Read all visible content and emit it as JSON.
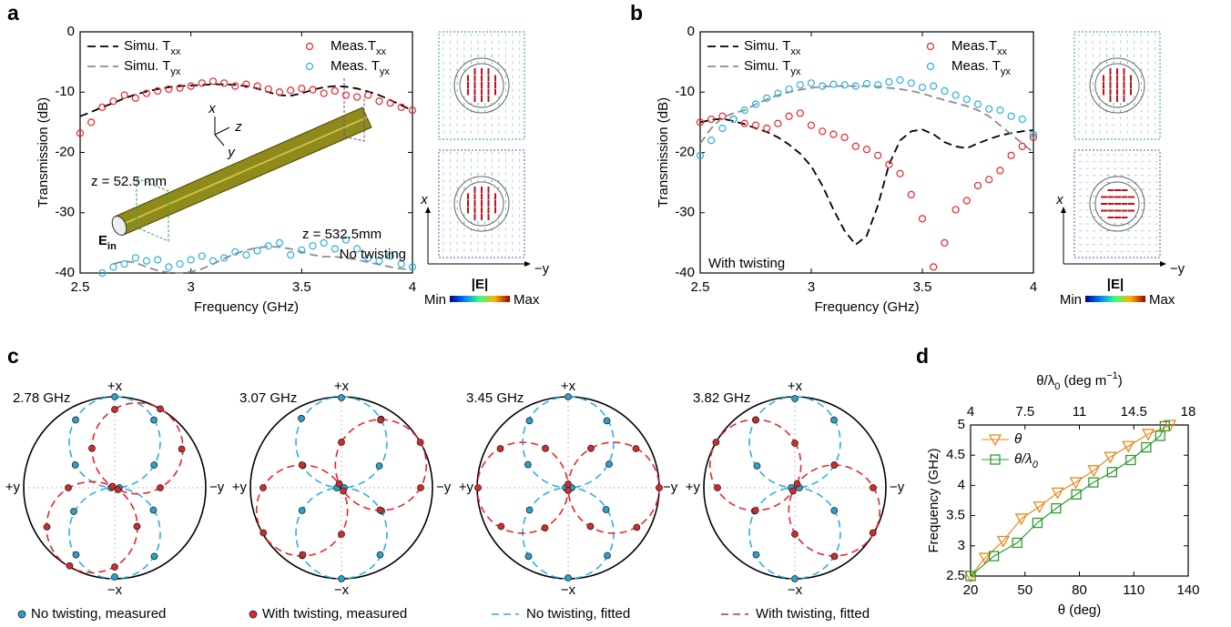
{
  "chart_data": [
    {
      "type": "line",
      "panel": "a",
      "xlabel": "Frequency (GHz)",
      "ylabel": "Transmission (dB)",
      "x": [
        2.5,
        2.55,
        2.6,
        2.65,
        2.7,
        2.75,
        2.8,
        2.85,
        2.9,
        2.95,
        3,
        3.05,
        3.1,
        3.15,
        3.2,
        3.25,
        3.3,
        3.35,
        3.4,
        3.45,
        3.5,
        3.55,
        3.6,
        3.65,
        3.7,
        3.75,
        3.8,
        3.85,
        3.9,
        3.95,
        4
      ],
      "xlim": [
        2.5,
        4
      ],
      "xticks": [
        2.5,
        3,
        3.5,
        4
      ],
      "ylim": [
        -40,
        0
      ],
      "yticks": [
        -40,
        -30,
        -20,
        -10,
        0
      ],
      "series": [
        {
          "name": "Simu. T",
          "name_sub": "xx",
          "color": "#000000",
          "dash": true,
          "values": [
            -14,
            -13.3,
            -12.5,
            -11.8,
            -11,
            -10.4,
            -9.9,
            -9.5,
            -9.2,
            -9,
            -8.9,
            -8.8,
            -8.7,
            -8.7,
            -8.8,
            -9,
            -9.4,
            -10,
            -10.5,
            -10.6,
            -10.2,
            -9.6,
            -9.2,
            -9,
            -9.1,
            -9.4,
            -9.9,
            -10.5,
            -11.3,
            -12.2,
            -13
          ]
        },
        {
          "name": "Simu. T",
          "name_sub": "yx",
          "color": "#8c8c8c",
          "dash": true,
          "values": [
            null,
            null,
            null,
            -38.5,
            -38,
            -38.3,
            -39,
            -39.6,
            -39.9,
            -40,
            -39.8,
            -39.3,
            -38.5,
            -37.6,
            -36.8,
            -36.2,
            -35.8,
            -35.6,
            -35.7,
            -36,
            -36.5,
            -37,
            -37.3,
            -37.3,
            -37.5,
            -37.8,
            -38.2,
            -38.6,
            -39,
            -39.3,
            -39.5
          ]
        },
        {
          "name": "Meas.T",
          "name_sub": "xx",
          "color": "#e8252a",
          "marker": "circle",
          "values": [
            -16.8,
            -15,
            -12.5,
            -11.5,
            -10.5,
            -11,
            -10.2,
            -9.8,
            -9.5,
            -9.3,
            -9,
            -8.5,
            -8.2,
            -8.5,
            -9,
            -8.7,
            -9,
            -9.5,
            -10,
            -9.7,
            -9.4,
            -9.6,
            -10.2,
            -9.8,
            -10.5,
            -10.8,
            -10.5,
            -11.5,
            -11.8,
            -12.5,
            -13
          ]
        },
        {
          "name": "Meas. T",
          "name_sub": "yx",
          "color": "#2ab0e0",
          "marker": "circle",
          "values": [
            null,
            null,
            -40,
            -39,
            -38.5,
            -37.5,
            -38,
            -37.8,
            -39,
            -38.5,
            -37.8,
            -37.2,
            -38,
            -37.5,
            -36.5,
            -37,
            -36.3,
            -35.5,
            -35,
            -37,
            -36.2,
            -35.5,
            -35,
            -36,
            -34.5,
            -36,
            -37.5,
            -38,
            -37.2,
            -38.5,
            -39
          ]
        }
      ],
      "annotations": [
        "x",
        "z",
        "y",
        "z = 52.5 mm",
        "z = 532.5mm",
        "No twisting"
      ],
      "field_label": {
        "text": "E",
        "sub": "in"
      },
      "inset": {
        "axis_labels": [
          "x",
          "−y"
        ],
        "colorbar": [
          "Min",
          "|E|",
          "Max"
        ]
      }
    },
    {
      "type": "line",
      "panel": "b",
      "xlabel": "Frequency (GHz)",
      "ylabel": "Transmission (dB)",
      "x": [
        2.5,
        2.55,
        2.6,
        2.65,
        2.7,
        2.75,
        2.8,
        2.85,
        2.9,
        2.95,
        3,
        3.05,
        3.1,
        3.15,
        3.2,
        3.25,
        3.3,
        3.35,
        3.4,
        3.45,
        3.5,
        3.55,
        3.6,
        3.65,
        3.7,
        3.75,
        3.8,
        3.85,
        3.9,
        3.95,
        4
      ],
      "xlim": [
        2.5,
        4
      ],
      "xticks": [
        2.5,
        3,
        3.5,
        4
      ],
      "ylim": [
        -40,
        0
      ],
      "yticks": [
        -40,
        -30,
        -20,
        -10,
        0
      ],
      "series": [
        {
          "name": "Simu. T",
          "name_sub": "xx",
          "color": "#000000",
          "dash": true,
          "values": [
            -15,
            -14.6,
            -14.4,
            -14.8,
            -15.3,
            -16,
            -16.6,
            -17.5,
            -18.7,
            -20.2,
            -22.3,
            -25.5,
            -29.5,
            -33,
            -35.3,
            -33.8,
            -28.8,
            -22,
            -18,
            -16.5,
            -16.2,
            -17,
            -18.3,
            -19,
            -19.3,
            -18.5,
            -17.8,
            -17.2,
            -16.8,
            -16.5,
            -16.3
          ]
        },
        {
          "name": "Simu. T",
          "name_sub": "yx",
          "color": "#8c8c8c",
          "dash": true,
          "values": [
            -18.5,
            -16,
            -14.2,
            -13.5,
            -13,
            -12,
            -11.2,
            -10.5,
            -10,
            -9.6,
            -9.3,
            -9.1,
            -9,
            -9,
            -9,
            -9,
            -9.1,
            -9.3,
            -9.5,
            -9.8,
            -10.2,
            -10.8,
            -11.3,
            -11.8,
            -12.3,
            -13,
            -14,
            -15.5,
            -17,
            -18.5,
            -20
          ]
        },
        {
          "name": "Meas.T",
          "name_sub": "xx",
          "color": "#e8252a",
          "marker": "circle",
          "values": [
            -15,
            -14.5,
            -14,
            -14.5,
            -15.2,
            -15.5,
            -16,
            -15.2,
            -14,
            -13.5,
            -15.5,
            -16.5,
            -17,
            -17.5,
            -19,
            -19.5,
            -20.5,
            -22,
            -23.5,
            -27,
            -31,
            -39,
            -35,
            -29.5,
            -28,
            -25.5,
            -24.5,
            -23,
            -20.5,
            -19,
            -17.5
          ]
        },
        {
          "name": "Meas. T",
          "name_sub": "yx",
          "color": "#2ab0e0",
          "marker": "circle",
          "values": [
            -20.5,
            -18,
            -16,
            -14.5,
            -13,
            -12,
            -11,
            -10.2,
            -9.5,
            -8.8,
            -8.5,
            -9,
            -8.7,
            -8.8,
            -9,
            -8.6,
            -8.8,
            -8.3,
            -8,
            -8.5,
            -9.2,
            -9,
            -9.8,
            -10.5,
            -11.2,
            -12,
            -12.8,
            -13,
            -14,
            -14.5,
            -17
          ]
        }
      ],
      "annotations": [
        "With twisting"
      ],
      "inset": {
        "axis_labels": [
          "x",
          "−y"
        ],
        "colorbar": [
          "Min",
          "|E|",
          "Max"
        ]
      }
    },
    {
      "type": "polar",
      "panel": "c",
      "titles": [
        "2.78 GHz",
        "3.07 GHz",
        "3.45 GHz",
        "3.82 GHz"
      ],
      "axis_labels": {
        "top": "+x",
        "bottom": "−x",
        "left": "+y",
        "right": "−y"
      },
      "theta": [
        0,
        30,
        60,
        90,
        120,
        150,
        180,
        210,
        240,
        270,
        300,
        330
      ],
      "rlim": [
        0,
        1
      ],
      "series": [
        {
          "name": "No twisting, measured",
          "color": "#2a9fd0",
          "marker": "circle",
          "values": [
            [
              1,
              0.86,
              0.5,
              0.05,
              0.49,
              0.87,
              0.98,
              0.85,
              0.52,
              0.04,
              0.5,
              0.86
            ],
            [
              0.99,
              0.87,
              0.48,
              0.03,
              0.51,
              0.85,
              1,
              0.86,
              0.5,
              0.05,
              0.49,
              0.88
            ],
            [
              1,
              0.85,
              0.52,
              0.04,
              0.48,
              0.86,
              0.99,
              0.87,
              0.49,
              0.03,
              0.51,
              0.85
            ],
            [
              0.98,
              0.86,
              0.5,
              0.05,
              0.5,
              0.87,
              1,
              0.85,
              0.51,
              0.04,
              0.48,
              0.86
            ]
          ]
        },
        {
          "name": "With twisting, measured",
          "color": "#d42a2a",
          "marker": "circle",
          "values": [
            [
              0.86,
              1,
              0.85,
              0.5,
              0.04,
              0.49,
              0.87,
              0.99,
              0.86,
              0.51,
              0.03,
              0.5
            ],
            [
              0.5,
              0.86,
              1,
              0.87,
              0.49,
              0.04,
              0.51,
              0.85,
              0.99,
              0.86,
              0.5,
              0.05
            ],
            [
              0.04,
              0.5,
              0.86,
              1,
              0.87,
              0.49,
              0.03,
              0.51,
              0.85,
              0.99,
              0.86,
              0.5
            ],
            [
              0.49,
              0.05,
              0.5,
              0.86,
              0.99,
              0.87,
              0.51,
              0.04,
              0.5,
              0.85,
              1,
              0.86
            ]
          ]
        },
        {
          "name": "No twisting, fitted",
          "color": "#2ab0e0",
          "dash": true,
          "angles": [
            0,
            0,
            0,
            0
          ]
        },
        {
          "name": "With twisting, fitted",
          "color": "#e8252a",
          "dash": true,
          "angles": [
            30,
            60,
            90,
            120
          ]
        }
      ]
    },
    {
      "type": "line",
      "panel": "d",
      "xlabel": "θ (deg)",
      "x2label": "θ/λ",
      "x2label_sub": "0",
      "x2label_unit": " (deg m",
      "x2label_sup": "−1",
      "x2label_end": ")",
      "ylabel": "Frequency (GHz)",
      "xlim": [
        20,
        140
      ],
      "xticks": [
        20,
        50,
        80,
        110,
        140
      ],
      "x2lim": [
        4,
        18
      ],
      "x2ticks": [
        4,
        7.5,
        11,
        14.5,
        18
      ],
      "ylim": [
        2.5,
        5
      ],
      "yticks": [
        2.5,
        3,
        3.5,
        4,
        4.5,
        5
      ],
      "series": [
        {
          "name": "θ",
          "color": "#e8891a",
          "marker": "triangle",
          "x": [
            20,
            28,
            38,
            48,
            58,
            68,
            78,
            88,
            97,
            107,
            118,
            130
          ],
          "values": [
            2.5,
            2.8,
            3.08,
            3.45,
            3.65,
            3.88,
            4.05,
            4.25,
            4.47,
            4.65,
            4.85,
            5
          ]
        },
        {
          "name": "θ/λ",
          "name_sub": "0",
          "color": "#2e9a2e",
          "marker": "square",
          "axis": "x2",
          "x": [
            4,
            5.5,
            7,
            8.3,
            9.5,
            10.8,
            11.9,
            13.1,
            14.3,
            15.3,
            16.2,
            16.5
          ],
          "values": [
            2.5,
            2.83,
            3.05,
            3.38,
            3.62,
            3.85,
            4.05,
            4.22,
            4.42,
            4.63,
            4.82,
            4.98
          ]
        }
      ]
    }
  ]
}
